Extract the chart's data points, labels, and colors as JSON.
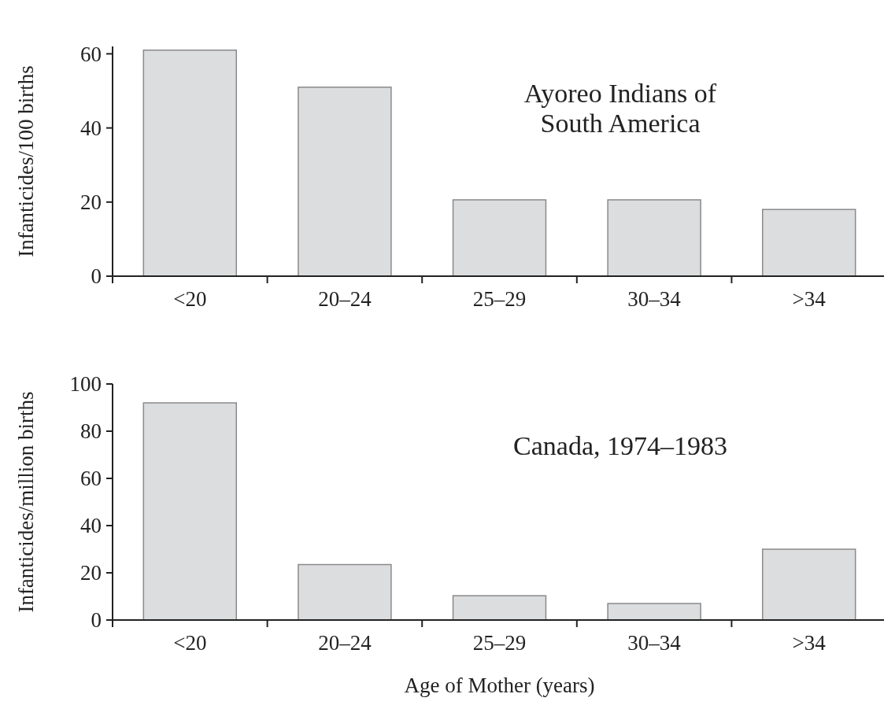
{
  "chart_data": [
    {
      "type": "bar",
      "ylabel": "Infanticides/100 births",
      "categories": [
        "<20",
        "20–24",
        "25–29",
        "30–34",
        ">34"
      ],
      "values": [
        61,
        51,
        20.6,
        20.6,
        18
      ],
      "color": "#dcdddf",
      "ylim": [
        0,
        62
      ],
      "yticks": [
        0,
        20,
        40,
        60
      ],
      "annotations": [
        "Ayoreo Indians of\nSouth America"
      ]
    },
    {
      "type": "bar",
      "ylabel": "Infanticides/million births",
      "xlabel": "Age of Mother (years)",
      "categories": [
        "<20",
        "20–24",
        "25–29",
        "30–34",
        ">34"
      ],
      "values": [
        92,
        23.5,
        10.3,
        7,
        30
      ],
      "color": "#dcdddf",
      "ylim": [
        0,
        100
      ],
      "yticks": [
        0,
        20,
        40,
        60,
        80,
        100
      ],
      "annotations": [
        "Canada, 1974–1983"
      ]
    }
  ]
}
